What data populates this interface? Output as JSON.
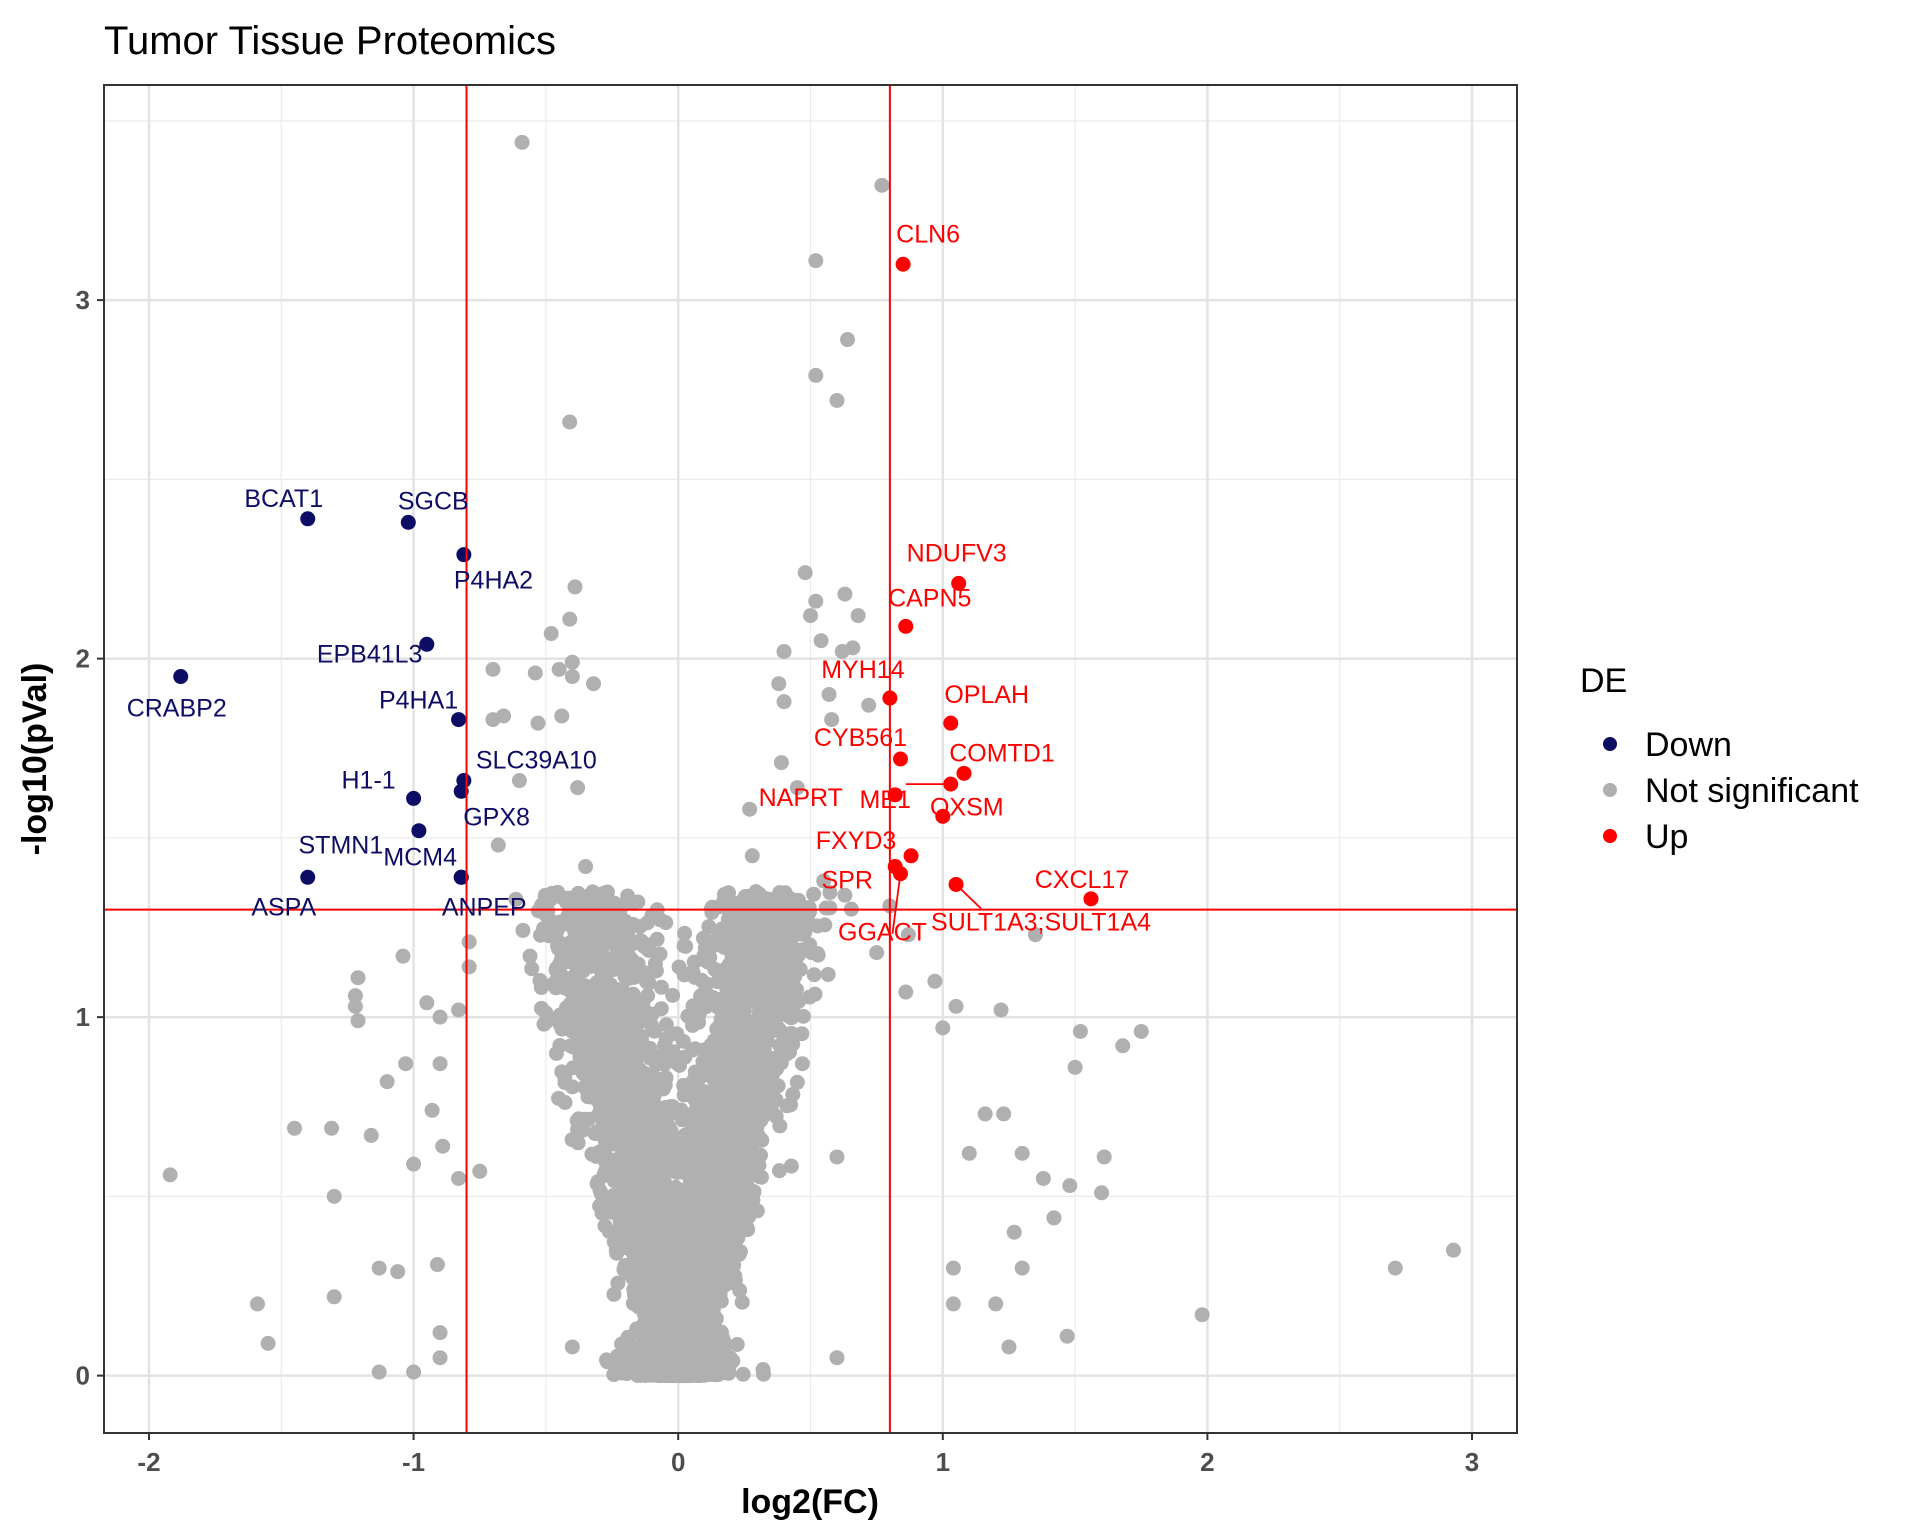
{
  "chart_data": {
    "type": "scatter",
    "title": "Tumor Tissue Proteomics",
    "xlabel": "log2(FC)",
    "ylabel": "-log10(pVal)",
    "xlim": [
      -2.17,
      3.17
    ],
    "ylim": [
      -0.16,
      3.6
    ],
    "x_ticks": [
      -2,
      -1,
      0,
      1,
      2,
      3
    ],
    "x_tick_labels": [
      "-2",
      "-1",
      "0",
      "1",
      "2",
      "3"
    ],
    "y_ticks": [
      0,
      1,
      2,
      3
    ],
    "y_tick_labels": [
      "0",
      "1",
      "2",
      "3"
    ],
    "grid": true,
    "legend_placement": "right",
    "thresholds": {
      "log2fc": [
        -0.8,
        0.8
      ],
      "neg_log10_p": 1.3,
      "color": "#ff0000"
    },
    "legend": {
      "title": "DE",
      "entries": [
        {
          "label": "Down",
          "color": "#0d0d66"
        },
        {
          "label": "Not significant",
          "color": "#b0b0b0"
        },
        {
          "label": "Up",
          "color": "#ff0000"
        }
      ]
    },
    "colors": {
      "Down": "#0d0d66",
      "Not significant": "#b0b0b0",
      "Up": "#ff0000"
    },
    "labeled_points": [
      {
        "gene": "CLN6",
        "x": 0.85,
        "y": 3.1,
        "group": "Up"
      },
      {
        "gene": "NDUFV3",
        "x": 1.06,
        "y": 2.21,
        "group": "Up"
      },
      {
        "gene": "CAPN5",
        "x": 0.86,
        "y": 2.09,
        "group": "Up"
      },
      {
        "gene": "MYH14",
        "x": 0.8,
        "y": 1.89,
        "group": "Up"
      },
      {
        "gene": "OPLAH",
        "x": 1.03,
        "y": 1.82,
        "group": "Up"
      },
      {
        "gene": "CYB561",
        "x": 0.84,
        "y": 1.72,
        "group": "Up"
      },
      {
        "gene": "COMTD1",
        "x": 1.08,
        "y": 1.68,
        "group": "Up"
      },
      {
        "gene": "NAPRT",
        "x": 1.03,
        "y": 1.65,
        "group": "Up"
      },
      {
        "gene": "ME1",
        "x": 0.82,
        "y": 1.62,
        "group": "Up"
      },
      {
        "gene": "OXSM",
        "x": 1.0,
        "y": 1.56,
        "group": "Up"
      },
      {
        "gene": "FXYD3",
        "x": 0.88,
        "y": 1.45,
        "group": "Up"
      },
      {
        "gene": "SPR",
        "x": 0.82,
        "y": 1.42,
        "group": "Up"
      },
      {
        "gene": "GGACT",
        "x": 0.84,
        "y": 1.4,
        "group": "Up"
      },
      {
        "gene": "CXCL17",
        "x": 1.56,
        "y": 1.33,
        "group": "Up"
      },
      {
        "gene": "SULT1A3;SULT1A4",
        "x": 1.05,
        "y": 1.37,
        "group": "Up"
      },
      {
        "gene": "BCAT1",
        "x": -1.4,
        "y": 2.39,
        "group": "Down"
      },
      {
        "gene": "SGCB",
        "x": -1.02,
        "y": 2.38,
        "group": "Down"
      },
      {
        "gene": "P4HA2",
        "x": -0.81,
        "y": 2.29,
        "group": "Down"
      },
      {
        "gene": "EPB41L3",
        "x": -0.95,
        "y": 2.04,
        "group": "Down"
      },
      {
        "gene": "CRABP2",
        "x": -1.88,
        "y": 1.95,
        "group": "Down"
      },
      {
        "gene": "P4HA1",
        "x": -0.83,
        "y": 1.83,
        "group": "Down"
      },
      {
        "gene": "SLC39A10",
        "x": -0.81,
        "y": 1.66,
        "group": "Down"
      },
      {
        "gene": "H1-1",
        "x": -1.0,
        "y": 1.61,
        "group": "Down"
      },
      {
        "gene": "GPX8",
        "x": -0.82,
        "y": 1.63,
        "group": "Down"
      },
      {
        "gene": "STMN1",
        "x": -0.98,
        "y": 1.52,
        "group": "Down"
      },
      {
        "gene": "MCM4",
        "x": -0.82,
        "y": 1.39,
        "group": "Down"
      },
      {
        "gene": "ASPA",
        "x": -1.4,
        "y": 1.39,
        "group": "Down"
      },
      {
        "gene": "ANPEP",
        "x": -0.82,
        "y": 1.39,
        "group": "Down"
      }
    ],
    "sampled_not_significant": [
      [
        -0.59,
        3.44
      ],
      [
        0.77,
        3.32
      ],
      [
        0.52,
        3.11
      ],
      [
        0.64,
        2.89
      ],
      [
        0.52,
        2.79
      ],
      [
        0.6,
        2.72
      ],
      [
        -0.41,
        2.66
      ],
      [
        0.48,
        2.24
      ],
      [
        -0.39,
        2.2
      ],
      [
        0.52,
        2.16
      ],
      [
        0.63,
        2.18
      ],
      [
        0.68,
        2.12
      ],
      [
        -0.41,
        2.11
      ],
      [
        0.5,
        2.12
      ],
      [
        -0.48,
        2.07
      ],
      [
        0.54,
        2.05
      ],
      [
        0.4,
        2.02
      ],
      [
        0.62,
        2.02
      ],
      [
        0.66,
        2.03
      ],
      [
        -0.4,
        1.99
      ],
      [
        -0.45,
        1.97
      ],
      [
        -0.7,
        1.97
      ],
      [
        -0.54,
        1.96
      ],
      [
        -0.4,
        1.95
      ],
      [
        -0.32,
        1.93
      ],
      [
        0.38,
        1.93
      ],
      [
        0.57,
        1.9
      ],
      [
        0.4,
        1.88
      ],
      [
        0.72,
        1.87
      ],
      [
        -0.66,
        1.84
      ],
      [
        -0.7,
        1.83
      ],
      [
        -0.53,
        1.82
      ],
      [
        -0.44,
        1.84
      ],
      [
        0.58,
        1.83
      ],
      [
        0.39,
        1.71
      ],
      [
        0.45,
        1.64
      ],
      [
        -0.6,
        1.66
      ],
      [
        -0.38,
        1.64
      ],
      [
        -0.68,
        1.48
      ],
      [
        0.27,
        1.58
      ],
      [
        0.28,
        1.45
      ],
      [
        -0.35,
        1.42
      ],
      [
        0.55,
        1.38
      ],
      [
        0.63,
        1.34
      ],
      [
        0.8,
        1.31
      ],
      [
        0.87,
        1.23
      ],
      [
        1.35,
        1.23
      ],
      [
        0.75,
        1.18
      ],
      [
        -0.79,
        1.21
      ],
      [
        -0.79,
        1.14
      ],
      [
        -0.56,
        1.17
      ],
      [
        -1.04,
        1.17
      ],
      [
        -1.21,
        1.11
      ],
      [
        -1.22,
        1.06
      ],
      [
        -1.22,
        1.03
      ],
      [
        -1.21,
        0.99
      ],
      [
        -0.95,
        1.04
      ],
      [
        -0.83,
        1.02
      ],
      [
        -0.9,
        1.0
      ],
      [
        0.86,
        1.07
      ],
      [
        0.97,
        1.1
      ],
      [
        1.05,
        1.03
      ],
      [
        1.22,
        1.02
      ],
      [
        1.0,
        0.97
      ],
      [
        1.52,
        0.96
      ],
      [
        1.75,
        0.96
      ],
      [
        1.68,
        0.92
      ],
      [
        1.5,
        0.86
      ],
      [
        -1.03,
        0.87
      ],
      [
        -0.9,
        0.87
      ],
      [
        -1.1,
        0.82
      ],
      [
        -0.93,
        0.74
      ],
      [
        -1.45,
        0.69
      ],
      [
        -1.31,
        0.69
      ],
      [
        -1.16,
        0.67
      ],
      [
        -0.89,
        0.64
      ],
      [
        -1.0,
        0.59
      ],
      [
        -0.75,
        0.57
      ],
      [
        -1.92,
        0.56
      ],
      [
        -1.3,
        0.5
      ],
      [
        -0.83,
        0.55
      ],
      [
        1.16,
        0.73
      ],
      [
        1.23,
        0.73
      ],
      [
        1.1,
        0.62
      ],
      [
        1.3,
        0.62
      ],
      [
        1.61,
        0.61
      ],
      [
        1.38,
        0.55
      ],
      [
        1.48,
        0.53
      ],
      [
        1.6,
        0.51
      ],
      [
        1.42,
        0.44
      ],
      [
        1.27,
        0.4
      ],
      [
        2.93,
        0.35
      ],
      [
        2.71,
        0.3
      ],
      [
        1.3,
        0.3
      ],
      [
        1.04,
        0.3
      ],
      [
        -1.13,
        0.3
      ],
      [
        -1.06,
        0.29
      ],
      [
        -1.59,
        0.2
      ],
      [
        -1.3,
        0.22
      ],
      [
        -0.91,
        0.31
      ],
      [
        1.04,
        0.2
      ],
      [
        1.2,
        0.2
      ],
      [
        1.98,
        0.17
      ],
      [
        1.47,
        0.11
      ],
      [
        -1.55,
        0.09
      ],
      [
        -1.13,
        0.01
      ],
      [
        -1.0,
        0.01
      ],
      [
        -0.9,
        0.05
      ],
      [
        -0.9,
        0.12
      ],
      [
        1.25,
        0.08
      ],
      [
        0.6,
        0.05
      ],
      [
        0.6,
        0.61
      ],
      [
        -0.4,
        0.08
      ],
      [
        -0.2,
        0.45
      ],
      [
        0.0,
        0.6
      ]
    ],
    "not_significant_cloud": "dense V-shaped cloud of several thousand grey points with vertex at (0, 0)"
  }
}
